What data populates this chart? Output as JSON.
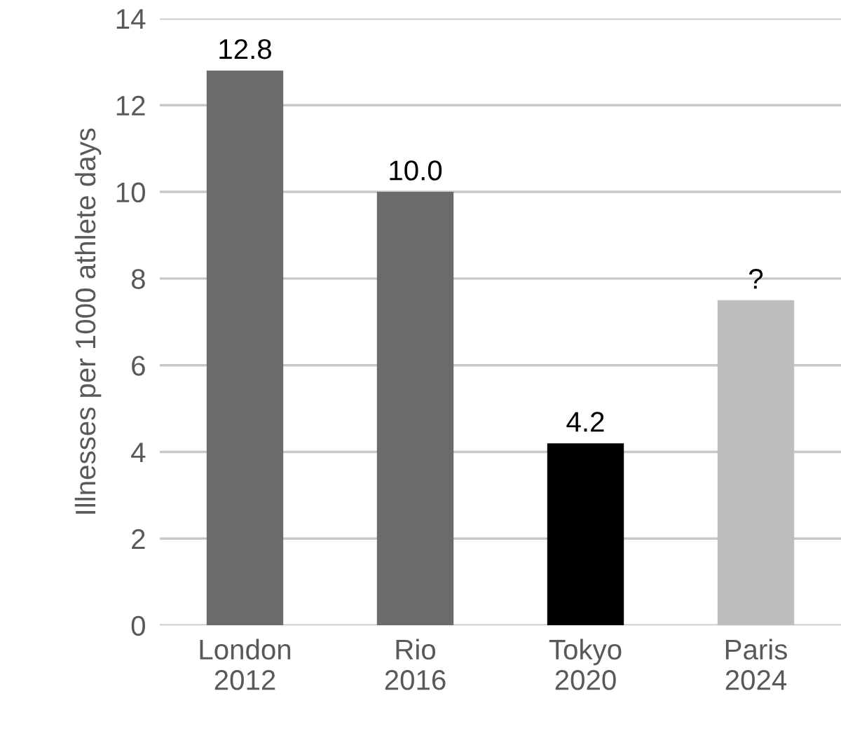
{
  "chart_data": {
    "type": "bar",
    "ylabel": "Illnesses per 1000 athlete days",
    "categories": [
      "London\n2012",
      "Rio\n2016",
      "Tokyo\n2020",
      "Paris\n2024"
    ],
    "values": [
      12.8,
      10.0,
      4.2,
      7.5
    ],
    "colors": [
      "#6b6b6b",
      "#6b6b6b",
      "#000000",
      "#bdbdbd"
    ],
    "value_labels": [
      "12.8",
      "10.0",
      "4.2",
      "?"
    ],
    "ylim": [
      0,
      14
    ],
    "yticks": [
      0,
      2,
      4,
      6,
      8,
      10,
      12,
      14
    ],
    "grid": "y",
    "legend": false
  }
}
